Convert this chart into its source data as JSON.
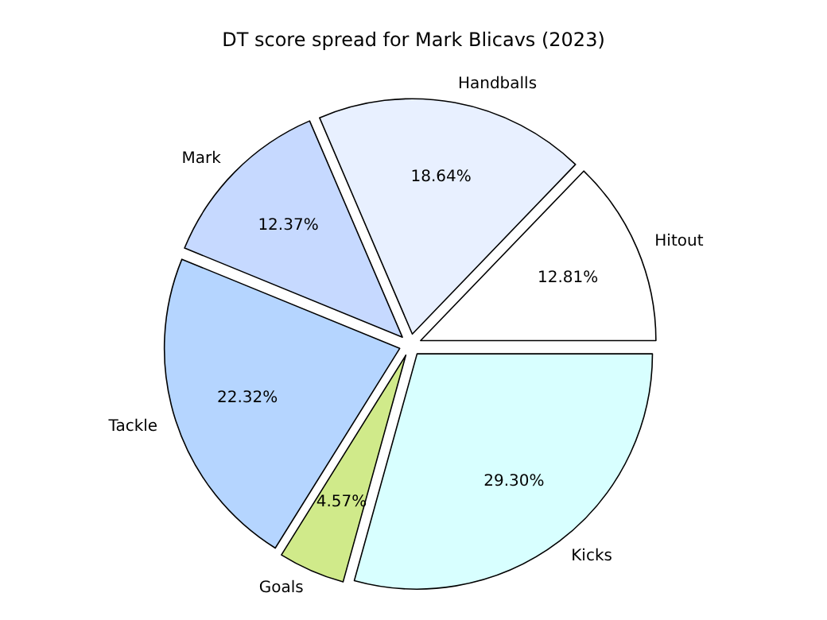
{
  "chart_data": {
    "type": "pie",
    "title": "DT score spread for Mark Blicavs (2023)",
    "categories": [
      "Hitout",
      "Handballs",
      "Mark",
      "Tackle",
      "Goals",
      "Kicks"
    ],
    "values": [
      12.81,
      18.64,
      12.37,
      22.32,
      4.57,
      29.3
    ],
    "value_labels": [
      "12.81%",
      "18.64%",
      "12.37%",
      "22.32%",
      "4.57%",
      "29.30%"
    ],
    "colors": [
      "#ffffff",
      "#e8f0ff",
      "#c6d9ff",
      "#b5d5ff",
      "#d0ea8a",
      "#d8ffff"
    ]
  }
}
